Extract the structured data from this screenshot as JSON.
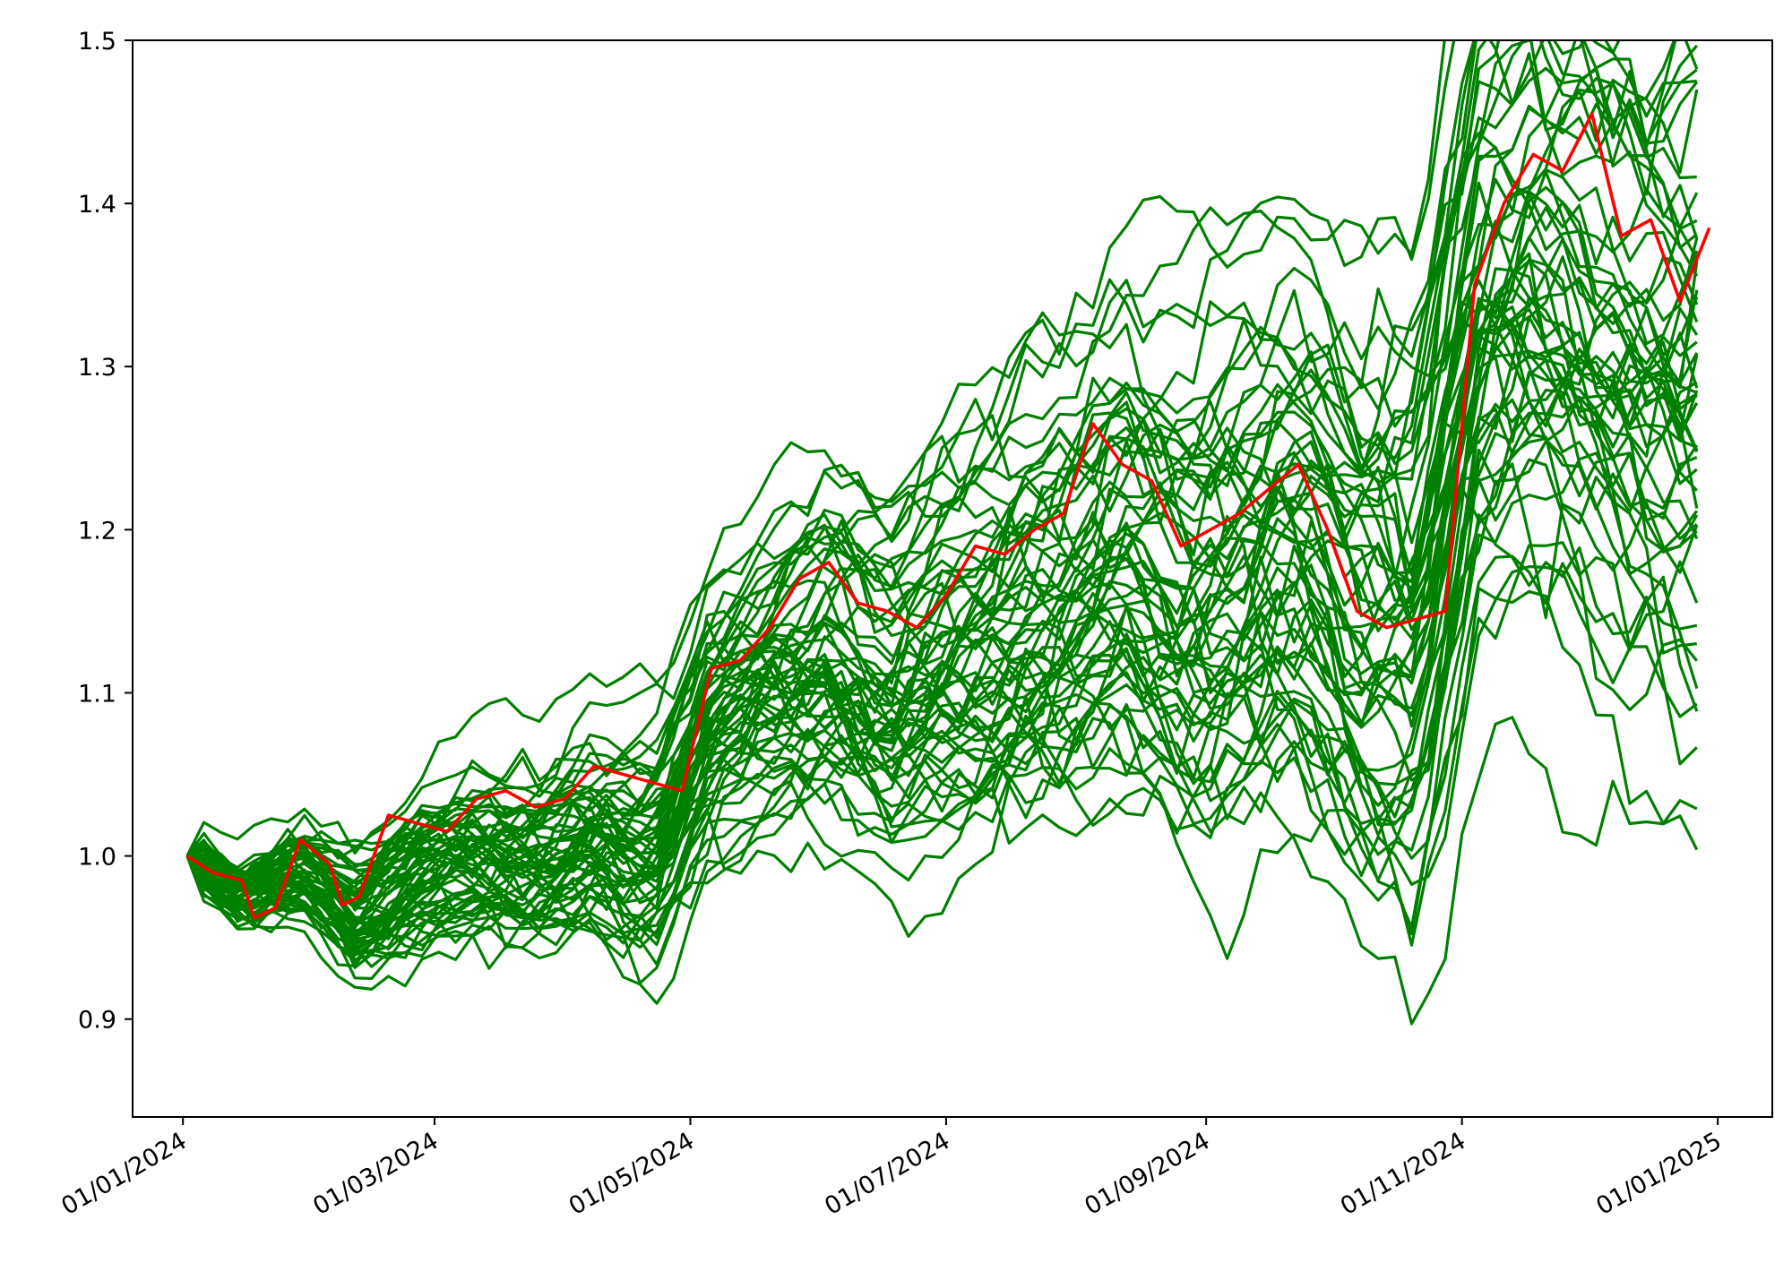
{
  "chart_data": {
    "type": "line",
    "title": "",
    "xlabel": "",
    "ylabel": "",
    "x_tick_labels": [
      "01/01/2024",
      "01/03/2024",
      "01/05/2024",
      "01/07/2024",
      "01/09/2024",
      "01/11/2024",
      "01/01/2025"
    ],
    "y_tick_labels": [
      "0.9",
      "1.0",
      "1.1",
      "1.2",
      "1.3",
      "1.4",
      "1.5"
    ],
    "xlim": [
      "2023-12-20",
      "2025-01-14"
    ],
    "ylim": [
      0.84,
      1.5
    ],
    "legend": "none",
    "grid": false,
    "colors": {
      "highlight": "#ff0000",
      "simulations": "#008000",
      "axes": "#000000"
    },
    "highlight_series": {
      "color": "#ff0000",
      "points": [
        [
          "2024-01-02",
          1.0
        ],
        [
          "2024-01-08",
          0.99
        ],
        [
          "2024-01-15",
          0.985
        ],
        [
          "2024-01-18",
          0.962
        ],
        [
          "2024-01-23",
          0.968
        ],
        [
          "2024-01-29",
          1.01
        ],
        [
          "2024-02-05",
          0.995
        ],
        [
          "2024-02-08",
          0.97
        ],
        [
          "2024-02-12",
          0.975
        ],
        [
          "2024-02-19",
          1.025
        ],
        [
          "2024-02-26",
          1.02
        ],
        [
          "2024-03-04",
          1.015
        ],
        [
          "2024-03-11",
          1.035
        ],
        [
          "2024-03-18",
          1.04
        ],
        [
          "2024-03-25",
          1.03
        ],
        [
          "2024-04-01",
          1.035
        ],
        [
          "2024-04-08",
          1.055
        ],
        [
          "2024-04-15",
          1.05
        ],
        [
          "2024-04-22",
          1.045
        ],
        [
          "2024-04-29",
          1.04
        ],
        [
          "2024-05-06",
          1.115
        ],
        [
          "2024-05-13",
          1.12
        ],
        [
          "2024-05-20",
          1.14
        ],
        [
          "2024-05-27",
          1.17
        ],
        [
          "2024-06-03",
          1.18
        ],
        [
          "2024-06-10",
          1.155
        ],
        [
          "2024-06-17",
          1.15
        ],
        [
          "2024-06-24",
          1.14
        ],
        [
          "2024-07-01",
          1.16
        ],
        [
          "2024-07-08",
          1.19
        ],
        [
          "2024-07-15",
          1.185
        ],
        [
          "2024-07-22",
          1.2
        ],
        [
          "2024-07-29",
          1.21
        ],
        [
          "2024-08-05",
          1.265
        ],
        [
          "2024-08-12",
          1.24
        ],
        [
          "2024-08-19",
          1.23
        ],
        [
          "2024-08-26",
          1.19
        ],
        [
          "2024-09-02",
          1.2
        ],
        [
          "2024-09-09",
          1.21
        ],
        [
          "2024-09-16",
          1.225
        ],
        [
          "2024-09-23",
          1.24
        ],
        [
          "2024-09-30",
          1.2
        ],
        [
          "2024-10-07",
          1.15
        ],
        [
          "2024-10-14",
          1.14
        ],
        [
          "2024-10-21",
          1.145
        ],
        [
          "2024-10-28",
          1.15
        ],
        [
          "2024-11-04",
          1.35
        ],
        [
          "2024-11-11",
          1.4
        ],
        [
          "2024-11-18",
          1.43
        ],
        [
          "2024-11-25",
          1.42
        ],
        [
          "2024-12-02",
          1.455
        ],
        [
          "2024-12-09",
          1.38
        ],
        [
          "2024-12-16",
          1.39
        ],
        [
          "2024-12-23",
          1.34
        ],
        [
          "2024-12-30",
          1.385
        ]
      ]
    },
    "simulation_series": {
      "color": "#008000",
      "count": 60,
      "points": [
        [
          "2024-01-02",
          1.0
        ],
        [
          "2024-01-15",
          0.975
        ],
        [
          "2024-01-29",
          0.99
        ],
        [
          "2024-02-12",
          0.96
        ],
        [
          "2024-02-26",
          0.99
        ],
        [
          "2024-03-11",
          1.0
        ],
        [
          "2024-03-25",
          0.995
        ],
        [
          "2024-04-08",
          1.01
        ],
        [
          "2024-04-22",
          1.0
        ],
        [
          "2024-05-06",
          1.08
        ],
        [
          "2024-05-20",
          1.1
        ],
        [
          "2024-06-03",
          1.12
        ],
        [
          "2024-06-17",
          1.09
        ],
        [
          "2024-07-01",
          1.12
        ],
        [
          "2024-07-15",
          1.14
        ],
        [
          "2024-07-29",
          1.16
        ],
        [
          "2024-08-12",
          1.19
        ],
        [
          "2024-08-26",
          1.16
        ],
        [
          "2024-09-09",
          1.17
        ],
        [
          "2024-09-23",
          1.19
        ],
        [
          "2024-10-07",
          1.14
        ],
        [
          "2024-10-21",
          1.13
        ],
        [
          "2024-11-04",
          1.32
        ],
        [
          "2024-11-18",
          1.35
        ],
        [
          "2024-12-02",
          1.33
        ],
        [
          "2024-12-16",
          1.3
        ],
        [
          "2024-12-30",
          1.29
        ]
      ]
    }
  }
}
